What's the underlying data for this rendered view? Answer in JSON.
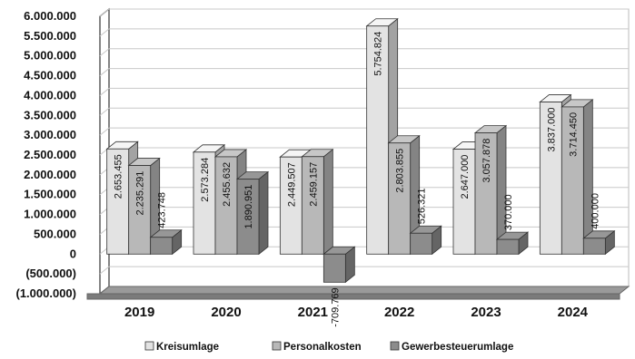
{
  "colors": {
    "kreisumlage": "#e3e3e3",
    "personalkosten": "#b8b8b8",
    "gewerbesteuerumlage": "#8c8c8c",
    "floor": "#9a9a9a",
    "wall": "#ffffff",
    "grid": "#c8c8c8",
    "edge": "#333333"
  },
  "chart_data": {
    "type": "bar",
    "categories": [
      "2019",
      "2020",
      "2021",
      "2022",
      "2023",
      "2024"
    ],
    "series": [
      {
        "name": "Kreisumlage",
        "values": [
          2653455,
          2573284,
          2449507,
          5754824,
          2647000,
          3837000
        ],
        "labels": [
          "2.653.455",
          "2.573.284",
          "2.449.507",
          "5.754.824",
          "2.647.000",
          "3.837.000"
        ]
      },
      {
        "name": "Personalkosten",
        "values": [
          2235291,
          2455632,
          2459157,
          2803855,
          3057878,
          3714450
        ],
        "labels": [
          "2.235.291",
          "2.455.632",
          "2.459.157",
          "2.803.855",
          "3.057.878",
          "3.714.450"
        ]
      },
      {
        "name": "Gewerbesteuerumlage",
        "values": [
          423748,
          1890951,
          -709769,
          526321,
          370000,
          400000
        ],
        "labels": [
          "423.748",
          "1.890.951",
          "-709.769",
          "526.321",
          "370.000",
          "400.000"
        ]
      }
    ],
    "ylim": [
      -1000000,
      6000000
    ],
    "yticks": [
      6000000,
      5500000,
      5000000,
      4500000,
      4000000,
      3500000,
      3000000,
      2500000,
      2000000,
      1500000,
      1000000,
      500000,
      0,
      -500000,
      -1000000
    ],
    "ytick_labels": [
      "6.000.000",
      "5.500.000",
      "5.000.000",
      "4.500.000",
      "4.000.000",
      "3.500.000",
      "3.000.000",
      "2.500.000",
      "2.000.000",
      "1.500.000",
      "1.000.000",
      "500.000",
      "0",
      "(500.000)",
      "(1.000.000)"
    ],
    "grid": true,
    "legend_position": "bottom",
    "title": "",
    "xlabel": "",
    "ylabel": ""
  }
}
